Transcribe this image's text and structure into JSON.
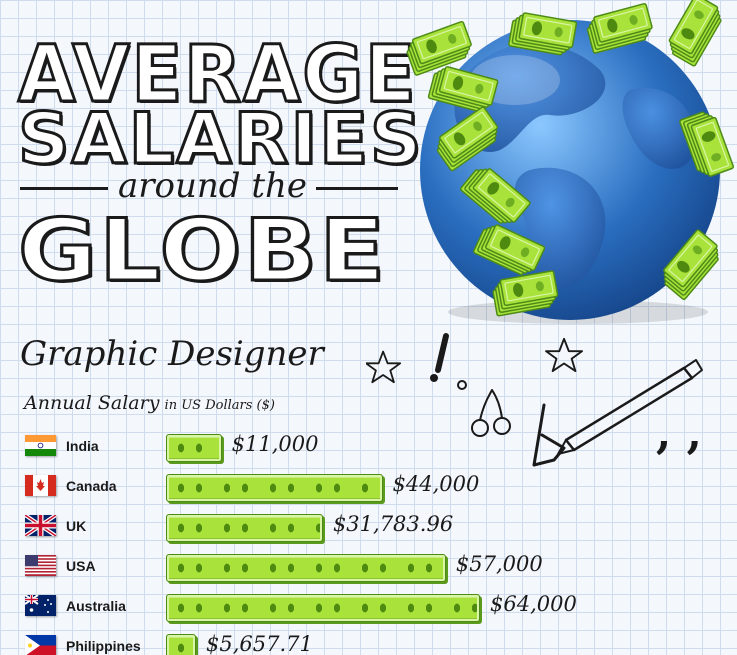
{
  "title": {
    "line1": "AVERAGE",
    "line2": "SALARIES",
    "line3": "around the",
    "line4": "GLOBE"
  },
  "subtitle": {
    "job": "Graphic Designer",
    "label_main": "Annual Salary",
    "label_small": "in US Dollars ($)"
  },
  "chart_data": {
    "type": "bar",
    "orientation": "horizontal",
    "categories": [
      "India",
      "Canada",
      "UK",
      "USA",
      "Australia",
      "Philippines"
    ],
    "values": [
      11000,
      44000,
      31783.96,
      57000,
      64000,
      5657.71
    ],
    "value_labels": [
      "$11,000",
      "$44,000",
      "$31,783.96",
      "$57,000",
      "$64,000",
      "$5,657.71"
    ],
    "title": "Graphic Designer",
    "xlabel": "Annual Salary in US Dollars ($)",
    "grid": false,
    "legend": "none"
  },
  "colors": {
    "bill_green": "#a8e23a",
    "bill_dark": "#4f8a10",
    "globe_blue": "#2a6ec0",
    "ink": "#1a1a1a"
  },
  "icons": [
    "globe-icon",
    "money-icon",
    "star-icon",
    "exclamation-icon",
    "cherries-icon",
    "pen-icon",
    "flag-icon"
  ]
}
